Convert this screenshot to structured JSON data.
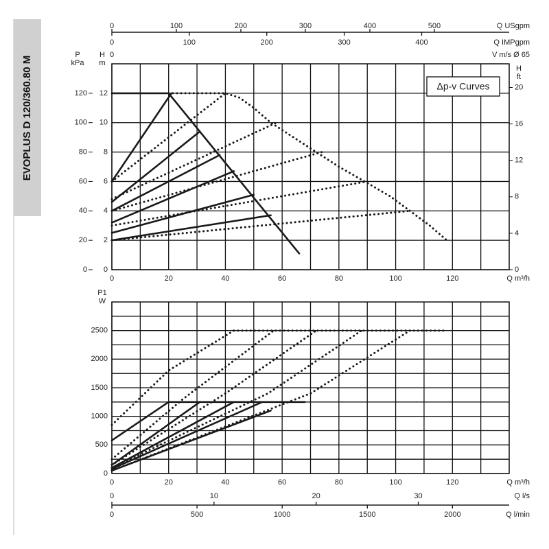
{
  "side_label": "EVOPLUS D 120/360.80 M",
  "chart_data": [
    {
      "type": "line",
      "annotation": "Δp-v Curves",
      "xlabel": "Q m³/h",
      "xlim": [
        0,
        140
      ],
      "xticks": [
        0,
        20,
        40,
        60,
        80,
        100,
        120
      ],
      "xminor": [
        10,
        30,
        50,
        70,
        90,
        110,
        130
      ],
      "ylabel": "H",
      "yunit": "m",
      "ylim": [
        0,
        14
      ],
      "yticks": [
        0,
        2,
        4,
        6,
        8,
        10,
        12
      ],
      "p_axis": {
        "label": "P",
        "unit": "kPa",
        "lim": [
          0,
          140
        ],
        "ticks": [
          0,
          20,
          40,
          60,
          80,
          100,
          120
        ]
      },
      "y2label": "H",
      "y2unit": "ft",
      "y2lim": [
        0,
        22.6
      ],
      "y2ticks": [
        0,
        4,
        8,
        12,
        16,
        20
      ],
      "top_axes": [
        {
          "label": "Q USgpm",
          "lim": [
            0,
            616
          ],
          "ticks": [
            0,
            100,
            200,
            300,
            400,
            500
          ]
        },
        {
          "label": "Q IMPgpm",
          "lim": [
            0,
            513
          ],
          "ticks": [
            0,
            100,
            200,
            300,
            400
          ]
        },
        {
          "label": "V m/s Ø 65",
          "lim": [
            0,
            11.7
          ],
          "ticks": [
            0
          ]
        }
      ],
      "grid": true,
      "series": [
        {
          "style": "solid",
          "color": "#1a1a1a",
          "x": [
            0,
            20,
            66
          ],
          "values": [
            12,
            12,
            1.1
          ]
        },
        {
          "style": "solid",
          "color": "#1a1a1a",
          "x": [
            0,
            21
          ],
          "values": [
            6,
            12
          ]
        },
        {
          "style": "solid",
          "color": "#1a1a1a",
          "x": [
            0,
            31
          ],
          "values": [
            4.6,
            9.4
          ]
        },
        {
          "style": "solid",
          "color": "#1a1a1a",
          "x": [
            0,
            38
          ],
          "values": [
            4,
            7.8
          ]
        },
        {
          "style": "solid",
          "color": "#1a1a1a",
          "x": [
            0,
            43
          ],
          "values": [
            3.2,
            6.7
          ]
        },
        {
          "style": "solid",
          "color": "#1a1a1a",
          "x": [
            0,
            50
          ],
          "values": [
            2.5,
            5.1
          ]
        },
        {
          "style": "solid",
          "color": "#1a1a1a",
          "x": [
            0,
            56
          ],
          "values": [
            2,
            3.7
          ]
        },
        {
          "style": "dotted",
          "color": "#1a1a1a",
          "x": [
            20,
            40,
            45,
            50,
            56,
            64,
            72,
            80,
            90,
            98,
            105,
            112,
            118
          ],
          "values": [
            12,
            12,
            11.7,
            11,
            10,
            9,
            8,
            7,
            5.9,
            5,
            4,
            3,
            2
          ]
        },
        {
          "style": "dotted",
          "color": "#1a1a1a",
          "x": [
            0,
            40
          ],
          "values": [
            6,
            12
          ]
        },
        {
          "style": "dotted",
          "color": "#1a1a1a",
          "x": [
            0,
            58
          ],
          "values": [
            4.8,
            10
          ]
        },
        {
          "style": "dotted",
          "color": "#1a1a1a",
          "x": [
            0,
            74
          ],
          "values": [
            4,
            8
          ]
        },
        {
          "style": "dotted",
          "color": "#1a1a1a",
          "x": [
            0,
            90
          ],
          "values": [
            3,
            6
          ]
        },
        {
          "style": "dotted",
          "color": "#1a1a1a",
          "x": [
            0,
            105
          ],
          "values": [
            2,
            4
          ]
        }
      ]
    },
    {
      "type": "line",
      "xlabel": "Q m³/h",
      "xlim": [
        0,
        140
      ],
      "xticks": [
        0,
        20,
        40,
        60,
        80,
        100,
        120
      ],
      "xminor": [
        10,
        30,
        50,
        70,
        90,
        110,
        130
      ],
      "ylabel": "P1",
      "yunit": "W",
      "ylim": [
        0,
        3000
      ],
      "yticks": [
        0,
        500,
        1000,
        1500,
        2000,
        2500
      ],
      "yminor": [
        250,
        750,
        1250,
        1750,
        2250,
        2750
      ],
      "bottom_axes": [
        {
          "label": "Q l/s",
          "lim": [
            0,
            38.9
          ],
          "ticks": [
            0,
            10,
            20,
            30
          ]
        },
        {
          "label": "Q l/min",
          "lim": [
            0,
            2333
          ],
          "ticks": [
            0,
            500,
            1000,
            1500,
            2000
          ]
        }
      ],
      "grid": true,
      "series": [
        {
          "style": "solid",
          "color": "#1a1a1a",
          "x": [
            20,
            68
          ],
          "values": [
            1250,
            1250
          ]
        },
        {
          "style": "solid",
          "color": "#1a1a1a",
          "x": [
            0,
            20
          ],
          "values": [
            580,
            1250
          ]
        },
        {
          "style": "solid",
          "color": "#1a1a1a",
          "x": [
            0,
            31
          ],
          "values": [
            150,
            1250
          ]
        },
        {
          "style": "solid",
          "color": "#1a1a1a",
          "x": [
            0,
            43
          ],
          "values": [
            100,
            1250
          ]
        },
        {
          "style": "solid",
          "color": "#1a1a1a",
          "x": [
            0,
            53
          ],
          "values": [
            80,
            1250
          ]
        },
        {
          "style": "solid",
          "color": "#1a1a1a",
          "x": [
            0,
            56
          ],
          "values": [
            50,
            1100
          ]
        },
        {
          "style": "dotted",
          "color": "#1a1a1a",
          "x": [
            43,
            118
          ],
          "values": [
            2500,
            2500
          ]
        },
        {
          "style": "dotted",
          "color": "#1a1a1a",
          "x": [
            0,
            20,
            43
          ],
          "values": [
            850,
            1800,
            2500
          ]
        },
        {
          "style": "dotted",
          "color": "#1a1a1a",
          "x": [
            0,
            25,
            57
          ],
          "values": [
            250,
            1300,
            2500
          ]
        },
        {
          "style": "dotted",
          "color": "#1a1a1a",
          "x": [
            0,
            40,
            72
          ],
          "values": [
            150,
            1400,
            2500
          ]
        },
        {
          "style": "dotted",
          "color": "#1a1a1a",
          "x": [
            0,
            55,
            88
          ],
          "values": [
            100,
            1400,
            2500
          ]
        },
        {
          "style": "dotted",
          "color": "#1a1a1a",
          "x": [
            0,
            70,
            105
          ],
          "values": [
            50,
            1400,
            2500
          ]
        }
      ]
    }
  ]
}
